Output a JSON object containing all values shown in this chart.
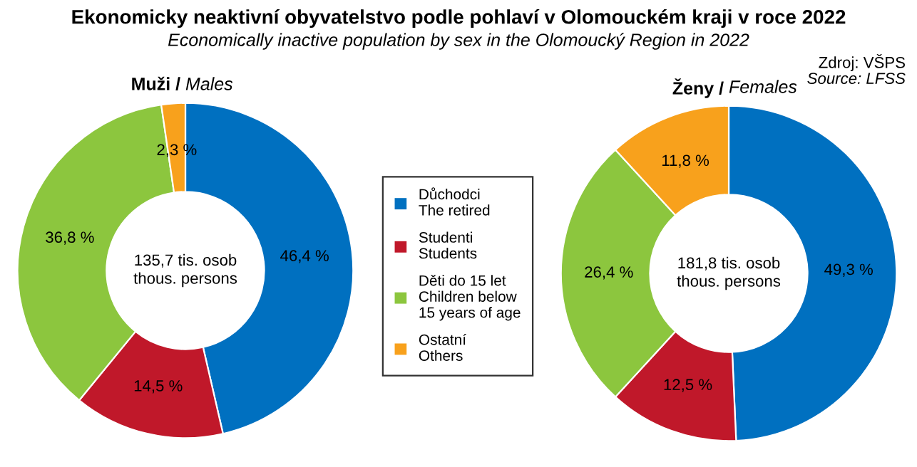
{
  "chart_data": [
    {
      "type": "other",
      "title": "Ekonomicky neaktivní obyvatelstvo podle pohlaví v Olomouckém kraji v roce 2022",
      "subtitle": "Economically inactive population by sex in the Olomoucký Region in 2022",
      "annotations": [
        "Zdroj: VŠPS",
        "Source: LFSS"
      ]
    },
    {
      "type": "donut",
      "title": "Muži / Males",
      "categories": [
        "Důchodci\nThe retired",
        "Studenti\nStudents",
        "Děti do 15 let\nChildren below\n15 years of age",
        "Ostatní\nOthers"
      ],
      "values": [
        46.4,
        14.5,
        36.8,
        2.3
      ],
      "colors": [
        "#0070c0",
        "#c0182a",
        "#8cc63e",
        "#f8a11c"
      ],
      "value_labels": [
        "46,4 %",
        "14,5 %",
        "36,8 %",
        "2,3 %"
      ],
      "annotations": [
        "135,7 tis. osob\nthous. persons"
      ],
      "legend": "right"
    },
    {
      "type": "donut",
      "title": "Ženy / Females",
      "categories": [
        null,
        null,
        null,
        null
      ],
      "values": [
        49.3,
        12.5,
        26.4,
        11.8
      ],
      "colors": [
        "#0070c0",
        "#c0182a",
        "#8cc63e",
        "#f8a11c"
      ],
      "value_labels": [
        "49,3 %",
        "12,5 %",
        "26,4 %",
        "11,8 %"
      ],
      "annotations": [
        "181,8 tis. osob\nthous. persons"
      ]
    }
  ]
}
